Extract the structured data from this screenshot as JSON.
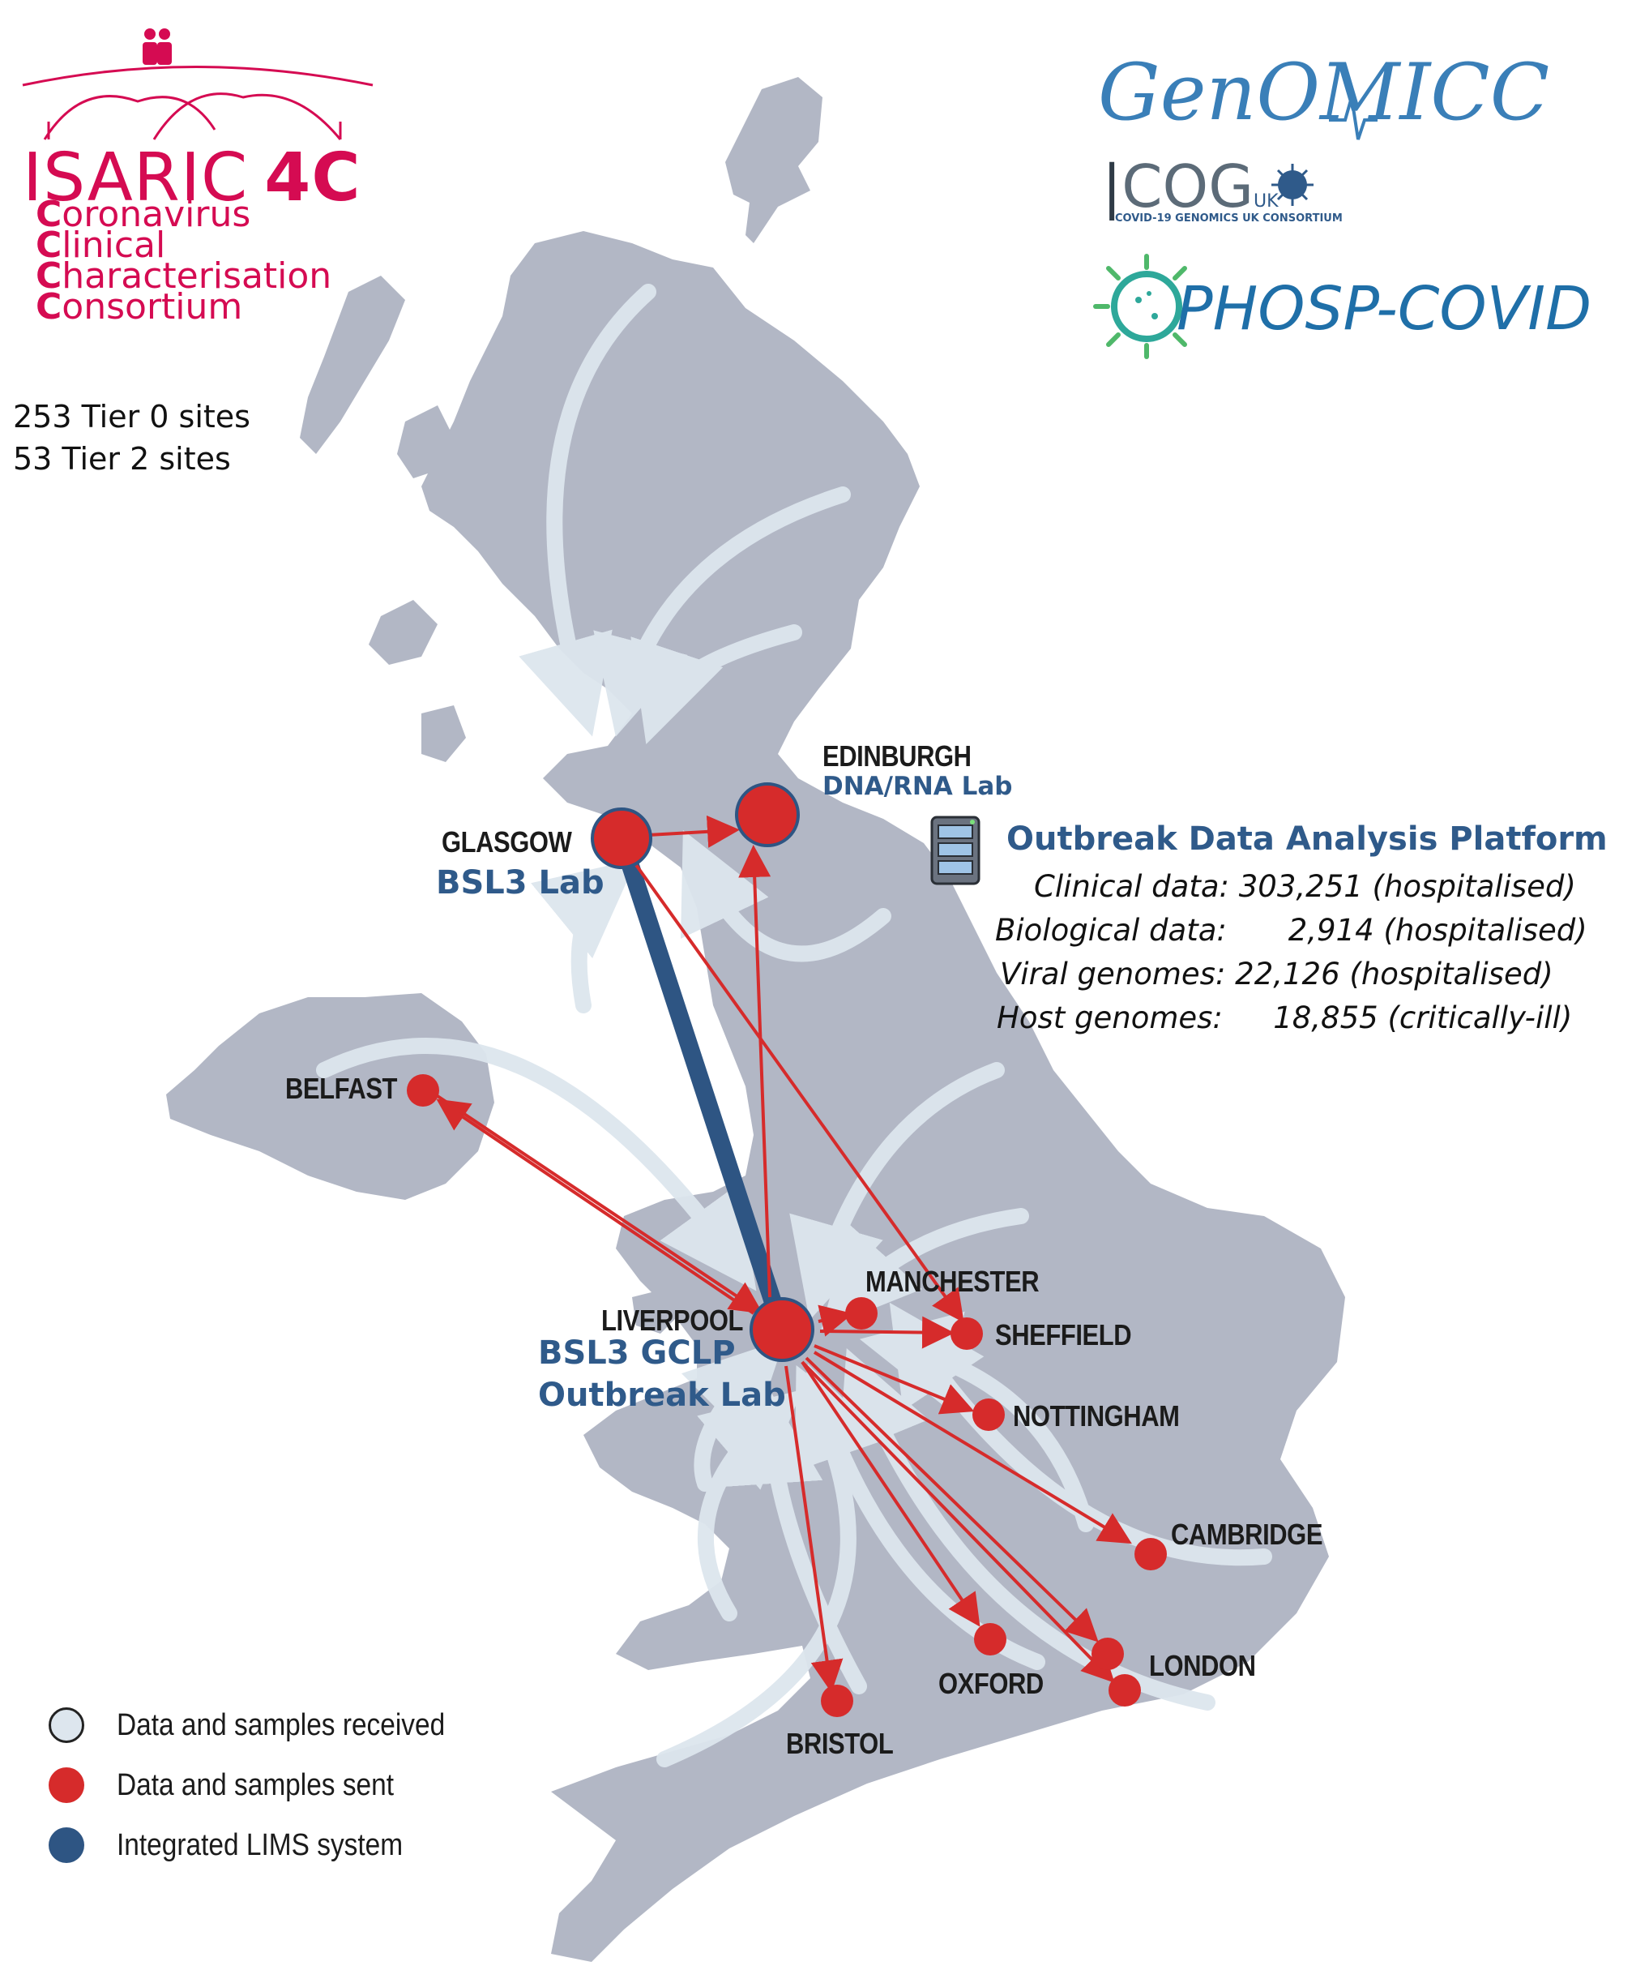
{
  "isaric": {
    "name": "ISARIC",
    "suffix": "4C",
    "lines": [
      {
        "initial": "C",
        "rest": "oronavirus"
      },
      {
        "initial": "C",
        "rest": "linical"
      },
      {
        "initial": "C",
        "rest": "haracterisation"
      },
      {
        "initial": "C",
        "rest": "onsortium"
      }
    ],
    "color": "#d50b52"
  },
  "sites": {
    "tier0": "253 Tier 0 sites",
    "tier2": "53 Tier 2 sites"
  },
  "logos": {
    "genomicc": "GenOMICC",
    "cog": "COG",
    "cog_uk": "UK",
    "cog_sub": "COVID-19 GENOMICS UK CONSORTIUM",
    "phosp": "PHOSP-COVID"
  },
  "cities": {
    "edinburgh": "EDINBURGH",
    "edinburgh_lab": "DNA/RNA Lab",
    "glasgow": "GLASGOW",
    "glasgow_lab": "BSL3 Lab",
    "belfast": "BELFAST",
    "liverpool": "LIVERPOOL",
    "liverpool_lab_1": "BSL3 GCLP",
    "liverpool_lab_2": "Outbreak Lab",
    "manchester": "MANCHESTER",
    "sheffield": "SHEFFIELD",
    "nottingham": "NOTTINGHAM",
    "cambridge": "CAMBRIDGE",
    "oxford": "OXFORD",
    "london": "LONDON",
    "bristol": "BRISTOL"
  },
  "platform": {
    "title": "Outbreak Data Analysis Platform",
    "stats": [
      {
        "label": "Clinical data:",
        "value": "303,251",
        "note": "(hospitalised)"
      },
      {
        "label": "Biological data:",
        "value": "2,914",
        "note": "(hospitalised)"
      },
      {
        "label": "Viral genomes:",
        "value": "22,126",
        "note": "(hospitalised)"
      },
      {
        "label": "Host genomes:",
        "value": "18,855",
        "note": "(critically-ill)"
      }
    ]
  },
  "legend": [
    {
      "label": "Data and samples received",
      "color": "#dde6ee"
    },
    {
      "label": "Data and samples sent",
      "color": "#d62b2b"
    },
    {
      "label": "Integrated LIMS system",
      "color": "#2e5583"
    }
  ],
  "colors": {
    "land": "#b2b7c5",
    "received_arrow": "#dde6ee",
    "sent": "#d62b2b",
    "lims": "#2e5583",
    "lab_text": "#2f5a8a"
  }
}
